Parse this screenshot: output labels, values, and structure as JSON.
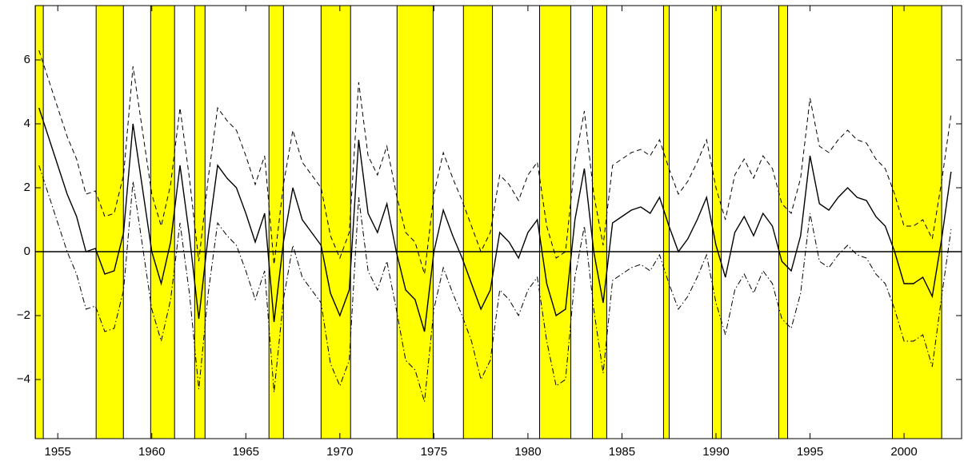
{
  "chart_data": {
    "type": "line",
    "x": [
      1954.0,
      1954.5,
      1955.0,
      1955.5,
      1956.0,
      1956.5,
      1957.0,
      1957.5,
      1958.0,
      1958.5,
      1959.0,
      1959.5,
      1960.0,
      1960.5,
      1961.0,
      1961.5,
      1962.0,
      1962.5,
      1963.0,
      1963.5,
      1964.0,
      1964.5,
      1965.0,
      1965.5,
      1966.0,
      1966.5,
      1967.0,
      1967.5,
      1968.0,
      1968.5,
      1969.0,
      1969.5,
      1970.0,
      1970.5,
      1971.0,
      1971.5,
      1972.0,
      1972.5,
      1973.0,
      1973.5,
      1974.0,
      1974.5,
      1975.0,
      1975.5,
      1976.0,
      1976.5,
      1977.0,
      1977.5,
      1978.0,
      1978.5,
      1979.0,
      1979.5,
      1980.0,
      1980.5,
      1981.0,
      1981.5,
      1982.0,
      1982.5,
      1983.0,
      1983.5,
      1984.0,
      1984.5,
      1985.0,
      1985.5,
      1986.0,
      1986.5,
      1987.0,
      1987.5,
      1988.0,
      1988.5,
      1989.0,
      1989.5,
      1990.0,
      1990.5,
      1991.0,
      1991.5,
      1992.0,
      1992.5,
      1993.0,
      1993.5,
      1994.0,
      1994.5,
      1995.0,
      1995.5,
      1996.0,
      1996.5,
      1997.0,
      1997.5,
      1998.0,
      1998.5,
      1999.0,
      1999.5,
      2000.0,
      2000.5,
      2001.0,
      2001.5,
      2002.0,
      2002.5
    ],
    "series": [
      {
        "color": "#000000",
        "style": "solid",
        "values": [
          4.5,
          3.6,
          2.7,
          1.8,
          1.1,
          0.0,
          0.1,
          -0.7,
          -0.6,
          0.6,
          4.0,
          2.0,
          0.0,
          -1.0,
          0.3,
          2.7,
          0.5,
          -2.1,
          0.5,
          2.7,
          2.3,
          2.0,
          1.2,
          0.3,
          1.2,
          -2.2,
          0.3,
          2.0,
          1.0,
          0.6,
          0.2,
          -1.3,
          -2.0,
          -1.2,
          3.5,
          1.2,
          0.6,
          1.5,
          0.0,
          -1.2,
          -1.5,
          -2.5,
          0.0,
          1.3,
          0.5,
          -0.2,
          -1.0,
          -1.8,
          -1.2,
          0.6,
          0.3,
          -0.2,
          0.6,
          1.0,
          -1.0,
          -2.0,
          -1.8,
          1.0,
          2.6,
          0.0,
          -1.6,
          0.9,
          1.1,
          1.3,
          1.4,
          1.2,
          1.7,
          0.8,
          0.0,
          0.4,
          1.0,
          1.7,
          0.2,
          -0.8,
          0.6,
          1.1,
          0.5,
          1.2,
          0.8,
          -0.3,
          -0.6,
          0.5,
          3.0,
          1.5,
          1.3,
          1.7,
          2.0,
          1.7,
          1.6,
          1.1,
          0.8,
          0.0,
          -1.0,
          -1.0,
          -0.8,
          -1.4,
          0.4,
          2.5
        ]
      },
      {
        "color": "#000000",
        "style": "dashed",
        "values": [
          6.3,
          5.4,
          4.5,
          3.6,
          2.9,
          1.8,
          1.9,
          1.1,
          1.2,
          2.4,
          5.8,
          3.8,
          1.8,
          0.8,
          2.1,
          4.5,
          2.3,
          -0.3,
          2.3,
          4.5,
          4.1,
          3.8,
          3.0,
          2.1,
          3.0,
          -0.4,
          2.1,
          3.8,
          2.8,
          2.4,
          2.0,
          0.5,
          -0.2,
          0.6,
          5.3,
          3.0,
          2.4,
          3.3,
          1.8,
          0.6,
          0.3,
          -0.7,
          1.8,
          3.1,
          2.3,
          1.6,
          0.8,
          0.0,
          0.6,
          2.4,
          2.1,
          1.6,
          2.4,
          2.8,
          0.8,
          -0.2,
          0.0,
          2.8,
          4.4,
          1.8,
          0.2,
          2.7,
          2.9,
          3.1,
          3.2,
          3.0,
          3.5,
          2.6,
          1.8,
          2.2,
          2.8,
          3.5,
          2.0,
          1.0,
          2.4,
          2.9,
          2.3,
          3.0,
          2.6,
          1.5,
          1.2,
          2.3,
          4.8,
          3.3,
          3.1,
          3.5,
          3.8,
          3.5,
          3.4,
          2.9,
          2.6,
          1.8,
          0.8,
          0.8,
          1.0,
          0.4,
          2.2,
          4.3
        ]
      },
      {
        "color": "#000000",
        "style": "dashdot",
        "values": [
          2.7,
          1.8,
          0.9,
          0.0,
          -0.7,
          -1.8,
          -1.7,
          -2.5,
          -2.4,
          -1.2,
          2.2,
          0.2,
          -1.8,
          -2.8,
          -1.5,
          0.9,
          -1.3,
          -4.3,
          -1.3,
          0.9,
          0.5,
          0.2,
          -0.6,
          -1.5,
          -0.6,
          -4.4,
          -1.5,
          0.2,
          -0.8,
          -1.2,
          -1.6,
          -3.5,
          -4.2,
          -3.4,
          1.7,
          -0.6,
          -1.2,
          -0.3,
          -1.8,
          -3.4,
          -3.7,
          -4.7,
          -1.8,
          -0.5,
          -1.3,
          -2.0,
          -2.8,
          -4.0,
          -3.4,
          -1.2,
          -1.5,
          -2.0,
          -1.2,
          -0.8,
          -2.8,
          -4.2,
          -4.0,
          -0.8,
          0.8,
          -1.8,
          -3.8,
          -0.9,
          -0.7,
          -0.5,
          -0.4,
          -0.6,
          -0.1,
          -1.0,
          -1.8,
          -1.4,
          -0.8,
          -0.1,
          -1.6,
          -2.6,
          -1.2,
          -0.7,
          -1.3,
          -0.6,
          -1.0,
          -2.1,
          -2.4,
          -1.3,
          1.2,
          -0.3,
          -0.5,
          -0.1,
          0.2,
          -0.1,
          -0.2,
          -0.7,
          -1.0,
          -1.8,
          -2.8,
          -2.8,
          -2.6,
          -3.6,
          -1.4,
          0.7
        ]
      }
    ],
    "shaded_periods": [
      [
        1953.81,
        1954.23
      ],
      [
        1957.04,
        1958.49
      ],
      [
        1959.94,
        1961.21
      ],
      [
        1962.28,
        1962.83
      ],
      [
        1966.23,
        1967.0
      ],
      [
        1969.0,
        1970.57
      ],
      [
        1973.04,
        1974.96
      ],
      [
        1976.57,
        1978.11
      ],
      [
        1980.62,
        1982.28
      ],
      [
        1983.43,
        1984.19
      ],
      [
        1987.21,
        1987.51
      ],
      [
        1989.81,
        1990.28
      ],
      [
        1993.34,
        1993.81
      ],
      [
        1999.38,
        2002.0
      ]
    ],
    "shade_color": "#ffff00",
    "reference_line": 0,
    "xlim": [
      1953.8,
      2003.06
    ],
    "ylim": [
      -5.85,
      7.7
    ],
    "xticks": [
      1955,
      1960,
      1965,
      1970,
      1975,
      1980,
      1985,
      1990,
      1995,
      2000
    ],
    "yticks": [
      {
        "value": -4,
        "label": "−4"
      },
      {
        "value": -2,
        "label": "−2"
      },
      0,
      2,
      4,
      6
    ]
  }
}
